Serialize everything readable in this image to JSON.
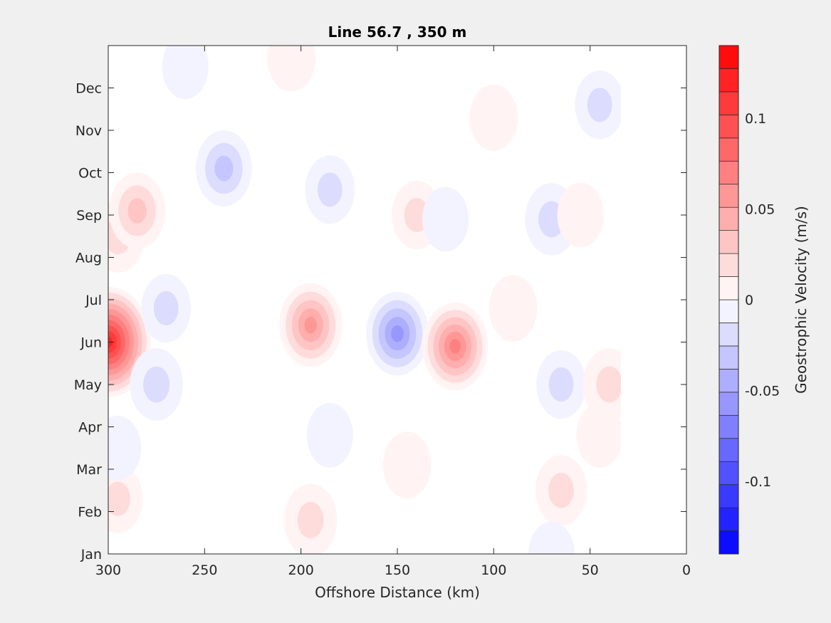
{
  "chart_data": {
    "type": "heatmap",
    "subtype": "filled-contour",
    "title": "Line 56.7 , 350 m",
    "xlabel": "Offshore Distance (km)",
    "ylabel": "",
    "x_reversed": true,
    "xlim": [
      300,
      0
    ],
    "x_ticks": [
      300,
      250,
      200,
      150,
      100,
      50,
      0
    ],
    "x_tick_labels": [
      "300",
      "250",
      "200",
      "150",
      "100",
      "50",
      "0"
    ],
    "y_ticks": [
      1,
      2,
      3,
      4,
      5,
      6,
      7,
      8,
      9,
      10,
      11,
      12
    ],
    "y_tick_labels": [
      "Jan",
      "Feb",
      "Mar",
      "Apr",
      "May",
      "Jun",
      "Jul",
      "Aug",
      "Sep",
      "Oct",
      "Nov",
      "Dec"
    ],
    "ylim": [
      1,
      13
    ],
    "data_x_extent": [
      300,
      34
    ],
    "grid": false,
    "colorbar": {
      "label": "Geostrophic Velocity (m/s)",
      "clim": [
        -0.14,
        0.14
      ],
      "levels": 22,
      "ticks": [
        -0.1,
        -0.05,
        0,
        0.05,
        0.1
      ],
      "tick_labels": [
        "-0.1",
        "-0.05",
        "0",
        "0.05",
        "0.1"
      ],
      "colormap": "blue-white-red",
      "neg_color": "#0000ff",
      "pos_color": "#ff0000",
      "zero_color": "#ffffff"
    },
    "features": [
      {
        "x": 300,
        "y": 6.0,
        "value": 0.13
      },
      {
        "x": 295,
        "y": 8.5,
        "value": 0.03
      },
      {
        "x": 285,
        "y": 9.1,
        "value": 0.04
      },
      {
        "x": 295,
        "y": 2.3,
        "value": 0.02
      },
      {
        "x": 275,
        "y": 5.0,
        "value": -0.03
      },
      {
        "x": 270,
        "y": 6.8,
        "value": -0.02
      },
      {
        "x": 295,
        "y": 3.5,
        "value": -0.01
      },
      {
        "x": 240,
        "y": 10.1,
        "value": -0.04
      },
      {
        "x": 260,
        "y": 12.5,
        "value": -0.01
      },
      {
        "x": 205,
        "y": 12.7,
        "value": 0.015
      },
      {
        "x": 195,
        "y": 6.4,
        "value": 0.06
      },
      {
        "x": 195,
        "y": 1.8,
        "value": 0.03
      },
      {
        "x": 185,
        "y": 9.6,
        "value": -0.02
      },
      {
        "x": 185,
        "y": 3.8,
        "value": -0.01
      },
      {
        "x": 150,
        "y": 6.2,
        "value": -0.06
      },
      {
        "x": 140,
        "y": 9.0,
        "value": 0.02
      },
      {
        "x": 145,
        "y": 3.1,
        "value": 0.015
      },
      {
        "x": 120,
        "y": 5.9,
        "value": 0.07
      },
      {
        "x": 125,
        "y": 8.9,
        "value": -0.01
      },
      {
        "x": 100,
        "y": 11.3,
        "value": 0.015
      },
      {
        "x": 90,
        "y": 6.8,
        "value": 0.015
      },
      {
        "x": 70,
        "y": 8.9,
        "value": -0.03
      },
      {
        "x": 65,
        "y": 2.5,
        "value": 0.025
      },
      {
        "x": 65,
        "y": 5.0,
        "value": -0.02
      },
      {
        "x": 45,
        "y": 11.6,
        "value": -0.02
      },
      {
        "x": 40,
        "y": 5.0,
        "value": 0.03
      },
      {
        "x": 45,
        "y": 3.8,
        "value": 0.01
      },
      {
        "x": 55,
        "y": 9.0,
        "value": 0.01
      },
      {
        "x": 70,
        "y": 1.0,
        "value": -0.01
      }
    ]
  }
}
